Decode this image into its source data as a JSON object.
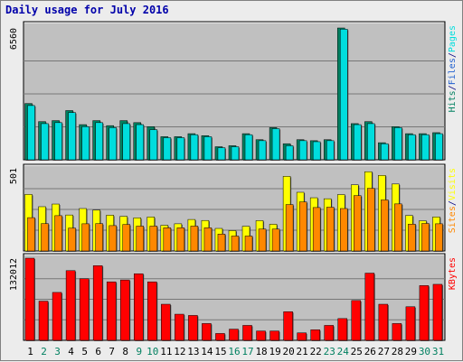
{
  "title": "Daily usage for July 2016",
  "chart_data": [
    {
      "type": "bar",
      "panel": "hits",
      "max_label": "6560",
      "ylim": [
        0,
        6560
      ],
      "categories": [
        "1",
        "2",
        "3",
        "4",
        "5",
        "6",
        "7",
        "8",
        "9",
        "10",
        "11",
        "12",
        "13",
        "14",
        "15",
        "16",
        "17",
        "18",
        "19",
        "20",
        "21",
        "22",
        "23",
        "24",
        "25",
        "26",
        "27",
        "28",
        "29",
        "30",
        "31"
      ],
      "weekend_days": [
        "2",
        "3",
        "9",
        "10",
        "16",
        "17",
        "23",
        "24",
        "30",
        "31"
      ],
      "legend": [
        "Pages",
        "/",
        "Files",
        "/",
        "Hits"
      ],
      "series": [
        {
          "name": "Hits",
          "values": [
            2700,
            1800,
            1850,
            2350,
            1650,
            1850,
            1600,
            1800,
            1750,
            1500,
            1100,
            1100,
            1250,
            1150,
            600,
            650,
            1250,
            950,
            1550,
            700,
            950,
            900,
            950,
            6500,
            1750,
            1800,
            800,
            1600,
            1250,
            1250,
            1300
          ]
        },
        {
          "name": "Files",
          "values": [
            2800,
            1900,
            1950,
            2450,
            1750,
            1950,
            1700,
            1950,
            1850,
            1650,
            1150,
            1150,
            1300,
            1200,
            650,
            700,
            1300,
            1000,
            1600,
            800,
            1000,
            950,
            1000,
            6560,
            1800,
            1900,
            850,
            1650,
            1300,
            1300,
            1350
          ]
        }
      ]
    },
    {
      "type": "bar",
      "panel": "visits",
      "max_label": "501",
      "ylim": [
        0,
        501
      ],
      "legend": [
        "Visits",
        "/",
        "Sites"
      ],
      "series": [
        {
          "name": "Visits",
          "values": [
            341,
            267,
            283,
            217,
            256,
            247,
            216,
            209,
            200,
            205,
            155,
            164,
            190,
            184,
            136,
            123,
            149,
            183,
            161,
            450,
            354,
            321,
            315,
            340,
            399,
            478,
            456,
            404,
            214,
            182,
            205
          ]
        },
        {
          "name": "Sites",
          "values": [
            201,
            165,
            213,
            138,
            164,
            165,
            153,
            160,
            150,
            150,
            140,
            140,
            150,
            140,
            102,
            90,
            90,
            132,
            132,
            280,
            296,
            262,
            264,
            256,
            334,
            378,
            308,
            284,
            162,
            166,
            164
          ]
        }
      ]
    },
    {
      "type": "bar",
      "panel": "kbytes",
      "max_label": "132012",
      "ylim": [
        0,
        132012
      ],
      "legend": [
        "KBytes"
      ],
      "series": [
        {
          "name": "KBytes",
          "values": [
            132012,
            63000,
            77000,
            112000,
            99000,
            120000,
            94000,
            97000,
            107000,
            94000,
            58000,
            42000,
            40000,
            27000,
            11000,
            18000,
            24000,
            15000,
            15000,
            46000,
            12000,
            17000,
            24000,
            35000,
            64000,
            108000,
            58000,
            27000,
            54000,
            88000,
            90000
          ]
        }
      ]
    }
  ],
  "colors": {
    "pages": "#00dddd",
    "files": "#2060d0",
    "hits": "#008060",
    "visits": "#ffff00",
    "sites": "#ff8800",
    "kbytes": "#ff0000",
    "panel_bg": "#c0c0c0",
    "gridline": "#777777",
    "weekday_label": "#000000",
    "weekend_label": "#008060"
  }
}
